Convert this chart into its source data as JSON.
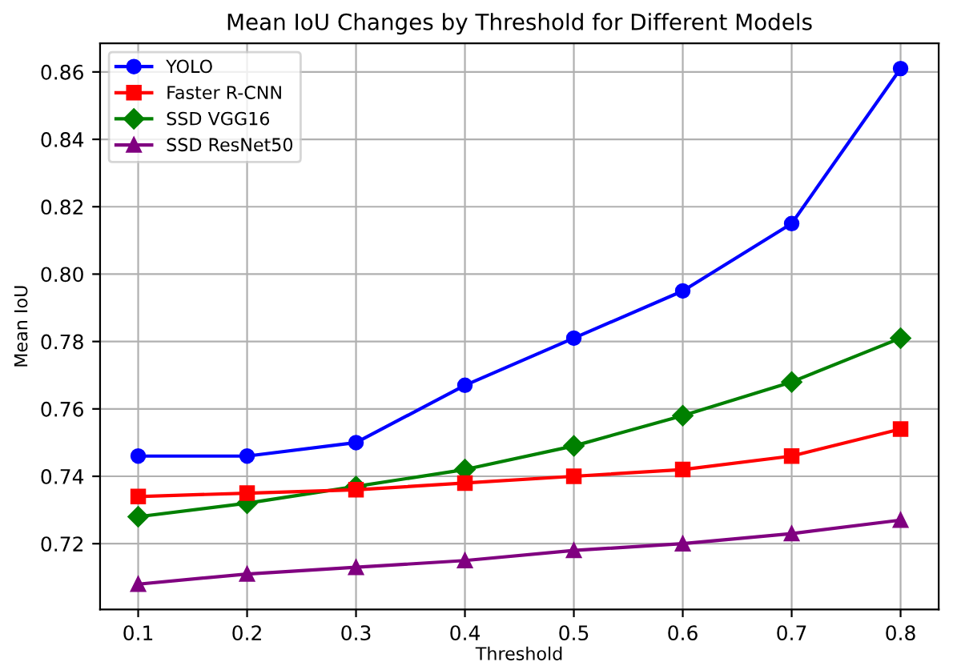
{
  "chart_data": {
    "type": "line",
    "title": "Mean IoU Changes by Threshold for Different Models",
    "xlabel": "Threshold",
    "ylabel": "Mean IoU",
    "x": [
      0.1,
      0.2,
      0.3,
      0.4,
      0.5,
      0.6,
      0.7,
      0.8
    ],
    "series": [
      {
        "name": "YOLO",
        "color": "#0000ff",
        "marker": "circle",
        "values": [
          0.746,
          0.746,
          0.75,
          0.767,
          0.781,
          0.795,
          0.815,
          0.861
        ]
      },
      {
        "name": "Faster R-CNN",
        "color": "#ff0000",
        "marker": "square",
        "values": [
          0.734,
          0.735,
          0.736,
          0.738,
          0.74,
          0.742,
          0.746,
          0.754
        ]
      },
      {
        "name": "SSD VGG16",
        "color": "#008000",
        "marker": "diamond",
        "values": [
          0.728,
          0.732,
          0.737,
          0.742,
          0.749,
          0.758,
          0.768,
          0.781
        ]
      },
      {
        "name": "SSD ResNet50",
        "color": "#800080",
        "marker": "triangle",
        "values": [
          0.708,
          0.711,
          0.713,
          0.715,
          0.718,
          0.72,
          0.723,
          0.727
        ]
      }
    ],
    "xlim": [
      0.065,
      0.835
    ],
    "xticks": [
      0.1,
      0.2,
      0.3,
      0.4,
      0.5,
      0.6,
      0.7,
      0.8
    ],
    "ylim": [
      0.7005,
      0.8685
    ],
    "yticks": [
      0.72,
      0.74,
      0.76,
      0.78,
      {
        "value": 0.8,
        "label": "0.80"
      },
      0.82,
      0.84,
      0.86
    ],
    "grid": true,
    "legend": "top left",
    "line_style": "solid"
  }
}
